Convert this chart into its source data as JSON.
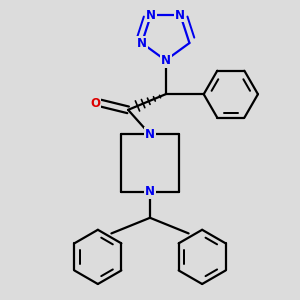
{
  "bg_color": "#dcdcdc",
  "bond_color": "#000000",
  "n_color": "#0000ee",
  "o_color": "#dd0000",
  "bond_width": 1.6,
  "font_size_atom": 8.5,
  "fig_size": [
    3.0,
    3.0
  ],
  "dpi": 100,
  "xlim": [
    -2.5,
    2.5
  ],
  "ylim": [
    -3.2,
    2.5
  ]
}
